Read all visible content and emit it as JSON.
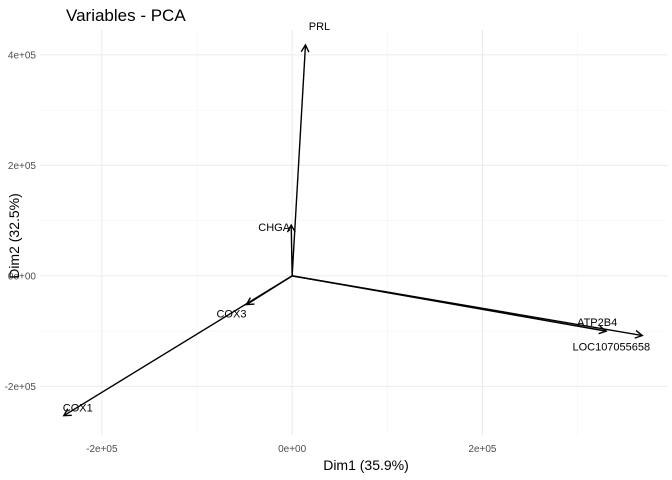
{
  "chart_data": {
    "type": "scatter",
    "subtype": "pca-variable-vectors",
    "title": "Variables - PCA",
    "xlabel": "Dim1 (35.9%)",
    "ylabel": "Dim2 (32.5%)",
    "xlim": [
      -265000,
      395000
    ],
    "ylim": [
      -288000,
      445000
    ],
    "x_ticks": [
      {
        "value": -200000,
        "label": "-2e+05"
      },
      {
        "value": 0,
        "label": "0e+00"
      },
      {
        "value": 200000,
        "label": "2e+05"
      }
    ],
    "y_ticks": [
      {
        "value": -200000,
        "label": "-2e+05"
      },
      {
        "value": 0,
        "label": "0e+00"
      },
      {
        "value": 200000,
        "label": "2e+05"
      },
      {
        "value": 400000,
        "label": "4e+05"
      }
    ],
    "x_minor_ticks": [
      -100000,
      100000,
      300000
    ],
    "y_minor_ticks": [
      -100000,
      100000,
      300000
    ],
    "grid": true,
    "theme": "minimal",
    "variables": [
      {
        "name": "PRL",
        "x": 14000,
        "y": 418000
      },
      {
        "name": "CHGA",
        "x": -1000,
        "y": 92000
      },
      {
        "name": "COX3",
        "x": -48000,
        "y": -52000
      },
      {
        "name": "COX1",
        "x": -240000,
        "y": -253000
      },
      {
        "name": "ATP2B4",
        "x": 330000,
        "y": -100000
      },
      {
        "name": "LOC107055658",
        "x": 368000,
        "y": -108000
      }
    ]
  }
}
